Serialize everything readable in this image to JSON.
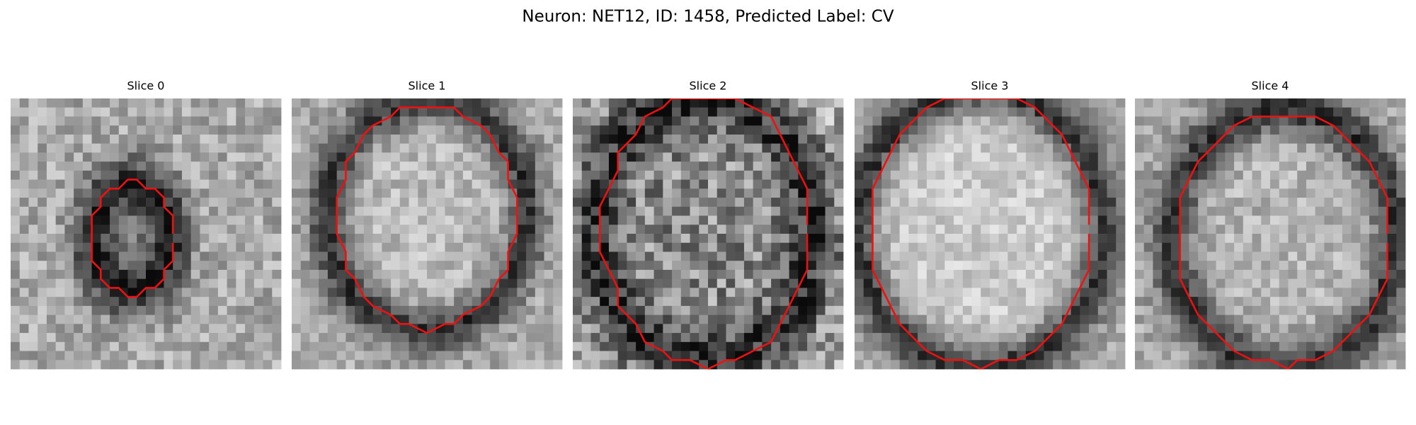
{
  "title": "Neuron: NET12, ID: 1458, Predicted Label: CV",
  "panels": [
    {
      "title": "Slice 0"
    },
    {
      "title": "Slice 1"
    },
    {
      "title": "Slice 2"
    },
    {
      "title": "Slice 3"
    },
    {
      "title": "Slice 4"
    }
  ]
}
